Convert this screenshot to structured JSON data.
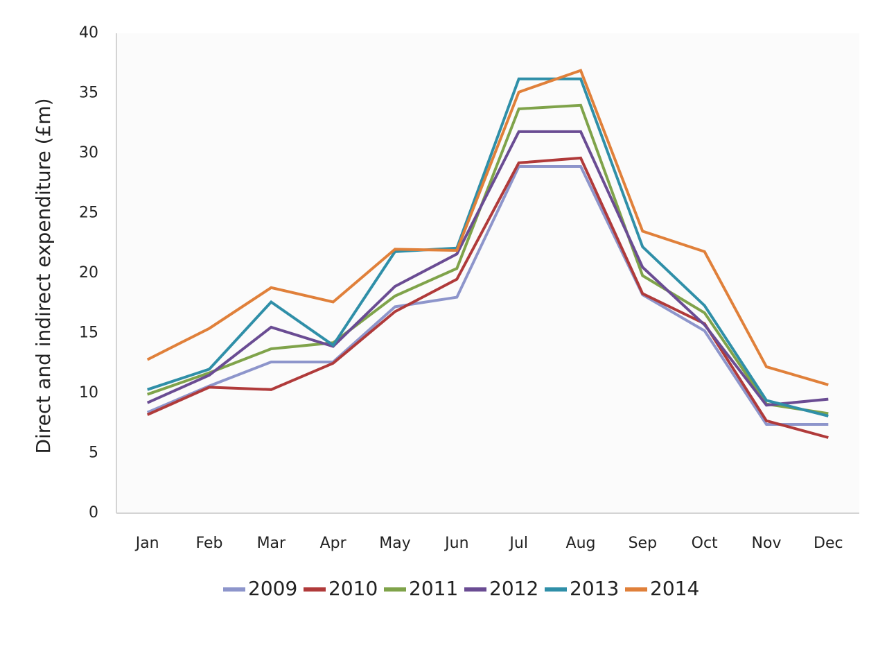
{
  "chart_data": {
    "type": "line",
    "title": "",
    "xlabel": "",
    "ylabel": "Direct and indirect expenditure (£m)",
    "ylim": [
      0,
      40
    ],
    "yticks": [
      0,
      5,
      10,
      15,
      20,
      25,
      30,
      35,
      40
    ],
    "grid": false,
    "legend_position": "bottom",
    "categories": [
      "Jan",
      "Feb",
      "Mar",
      "Apr",
      "May",
      "Jun",
      "Jul",
      "Aug",
      "Sep",
      "Oct",
      "Nov",
      "Dec"
    ],
    "series": [
      {
        "name": "2009",
        "color": "#8d95cb",
        "values": [
          8.4,
          10.6,
          12.6,
          12.6,
          17.2,
          18.0,
          28.9,
          28.9,
          18.2,
          15.2,
          7.4,
          7.4
        ]
      },
      {
        "name": "2010",
        "color": "#b03a3a",
        "values": [
          8.2,
          10.5,
          10.3,
          12.5,
          16.8,
          19.5,
          29.2,
          29.6,
          18.3,
          15.8,
          7.7,
          6.3
        ]
      },
      {
        "name": "2011",
        "color": "#7fa34a",
        "values": [
          9.9,
          11.7,
          13.7,
          14.2,
          18.1,
          20.4,
          33.7,
          34.0,
          19.8,
          16.7,
          9.1,
          8.3
        ]
      },
      {
        "name": "2012",
        "color": "#6a4c93",
        "values": [
          9.2,
          11.5,
          15.5,
          13.9,
          18.9,
          21.6,
          31.8,
          31.8,
          20.5,
          15.7,
          9.0,
          9.5
        ]
      },
      {
        "name": "2013",
        "color": "#2f8fa8",
        "values": [
          10.3,
          12.0,
          17.6,
          14.0,
          21.8,
          22.1,
          36.2,
          36.2,
          22.2,
          17.3,
          9.4,
          8.1
        ]
      },
      {
        "name": "2014",
        "color": "#e0803a",
        "values": [
          12.8,
          15.4,
          18.8,
          17.6,
          22.0,
          21.9,
          35.1,
          36.9,
          23.5,
          21.8,
          12.2,
          10.7
        ]
      }
    ]
  }
}
